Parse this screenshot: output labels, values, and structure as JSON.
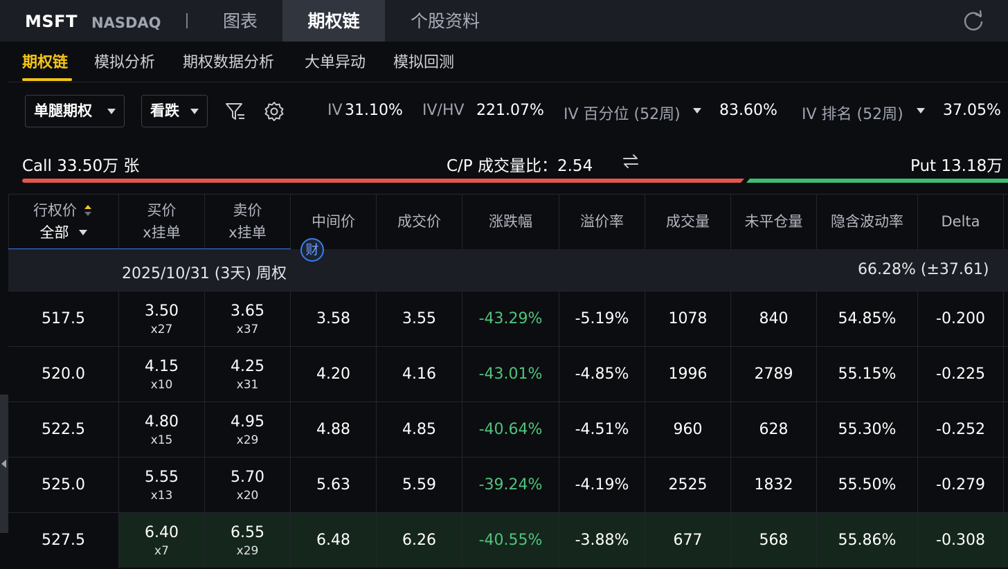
{
  "header": {
    "ticker": "MSFT",
    "exchange": "NASDAQ",
    "tabs": [
      {
        "label": "图表"
      },
      {
        "label": "期权链"
      },
      {
        "label": "个股资料"
      }
    ],
    "active_tab": "期权链",
    "refresh_icon": "refresh-icon"
  },
  "subnav": {
    "tabs": [
      {
        "label": "期权链"
      },
      {
        "label": "模拟分析"
      },
      {
        "label": "期权数据分析"
      },
      {
        "label": "大单异动"
      },
      {
        "label": "模拟回测"
      }
    ],
    "active": "期权链"
  },
  "toolbar": {
    "strategy_select": "单腿期权",
    "direction_select": "看跌",
    "filter_icon": "filter-icon",
    "settings_icon": "gear-icon",
    "iv_label": "IV",
    "iv_value": "31.10%",
    "ivhv_label": "IV/HV",
    "ivhv_value": "221.07%",
    "iv_pct_label": "IV 百分位 (52周)",
    "iv_pct_value": "83.60%",
    "iv_rank_label": "IV 排名 (52周)",
    "iv_rank_value": "37.05%"
  },
  "volume": {
    "call_text": "Call 33.50万 张",
    "ratio_text": "C/P 成交量比：2.54",
    "swap_icon": "swap-arrows-icon",
    "put_text": "Put 13.18万",
    "call_share": 0.718,
    "call_color": "#e0574b",
    "put_color": "#3dbd73"
  },
  "table": {
    "columns": {
      "strike_line1": "行权价",
      "strike_line2": "全部",
      "bid_line1": "买价",
      "bid_line2": "x挂单",
      "ask_line1": "卖价",
      "ask_line2": "x挂单",
      "mid": "中间价",
      "last": "成交价",
      "change": "涨跌幅",
      "premium": "溢价率",
      "volume": "成交量",
      "open_interest": "未平仓量",
      "iv": "隐含波动率",
      "delta": "Delta"
    },
    "badge": "财",
    "expiry": {
      "label": "2025/10/31 (3天) 周权",
      "right": "66.28%  (±37.61)"
    },
    "rows": [
      {
        "strike": "517.5",
        "bid": "3.50",
        "bid_size": "x27",
        "ask": "3.65",
        "ask_size": "x37",
        "mid": "3.58",
        "last": "3.55",
        "change": "-43.29%",
        "premium": "-5.19%",
        "volume": "1078",
        "oi": "840",
        "iv": "54.85%",
        "delta": "-0.200"
      },
      {
        "strike": "520.0",
        "bid": "4.15",
        "bid_size": "x10",
        "ask": "4.25",
        "ask_size": "x31",
        "mid": "4.20",
        "last": "4.16",
        "change": "-43.01%",
        "premium": "-4.85%",
        "volume": "1996",
        "oi": "2789",
        "iv": "55.15%",
        "delta": "-0.225"
      },
      {
        "strike": "522.5",
        "bid": "4.80",
        "bid_size": "x15",
        "ask": "4.95",
        "ask_size": "x29",
        "mid": "4.88",
        "last": "4.85",
        "change": "-40.64%",
        "premium": "-4.51%",
        "volume": "960",
        "oi": "628",
        "iv": "55.30%",
        "delta": "-0.252"
      },
      {
        "strike": "525.0",
        "bid": "5.55",
        "bid_size": "x13",
        "ask": "5.70",
        "ask_size": "x20",
        "mid": "5.63",
        "last": "5.59",
        "change": "-39.24%",
        "premium": "-4.19%",
        "volume": "2525",
        "oi": "1832",
        "iv": "55.50%",
        "delta": "-0.279"
      },
      {
        "strike": "527.5",
        "bid": "6.40",
        "bid_size": "x7",
        "ask": "6.55",
        "ask_size": "x29",
        "mid": "6.48",
        "last": "6.26",
        "change": "-40.55%",
        "premium": "-3.88%",
        "volume": "677",
        "oi": "568",
        "iv": "55.86%",
        "delta": "-0.308"
      }
    ],
    "negative_color": "#4fc47d",
    "itm_row_color": "#15261c"
  }
}
